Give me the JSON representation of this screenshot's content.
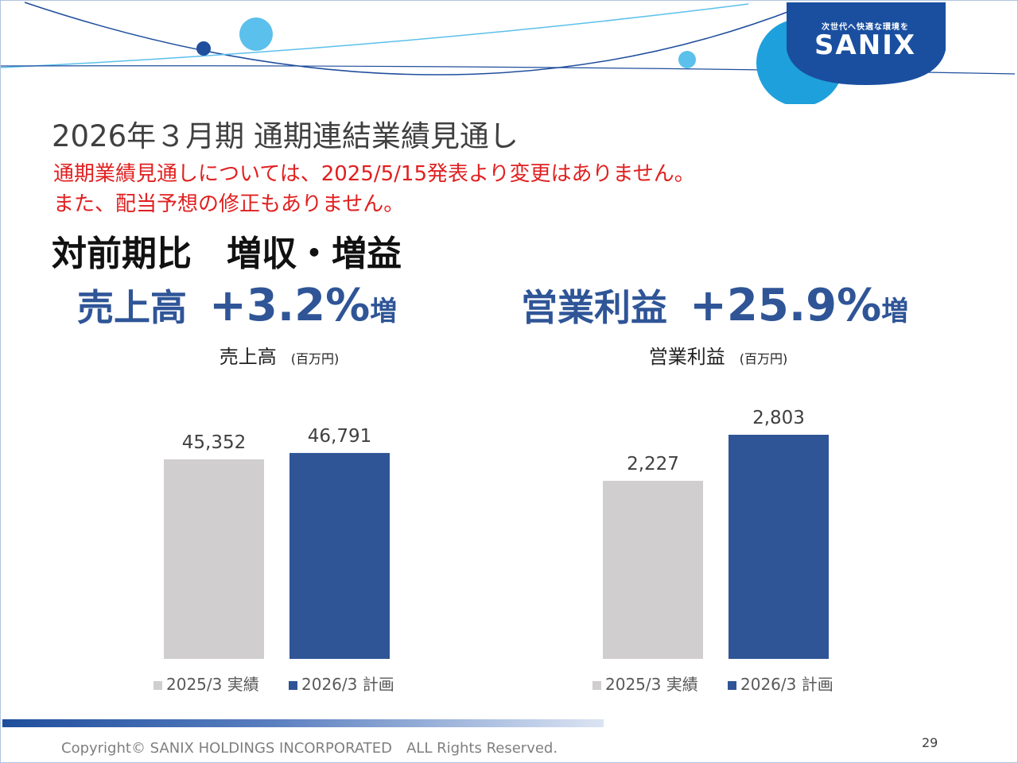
{
  "logo": {
    "tagline": "次世代へ快適な環境を",
    "wordmark": "SANIX"
  },
  "title": "2026年３月期 通期連結業績見通し",
  "notices": [
    "通期業績見通しについては、2025/5/15発表より変更はありません。",
    "また、配当予想の修正もありません。"
  ],
  "subheadline": "対前期比　増収・増益",
  "kpis": [
    {
      "label": "売上高",
      "value": "+3.2%",
      "suffix": "増"
    },
    {
      "label": "営業利益",
      "value": "+25.9%",
      "suffix": "増"
    }
  ],
  "chart_data": [
    {
      "type": "bar",
      "title": "売上高",
      "unit": "(百万円)",
      "categories": [
        "2025/3 実績",
        "2026/3 計画"
      ],
      "values": [
        45352,
        46791
      ],
      "labels": [
        "45,352",
        "46,791"
      ],
      "colors": [
        "#d0cece",
        "#2f5597"
      ],
      "ylim": [
        0,
        50931
      ],
      "legend": "bottom",
      "grid": false
    },
    {
      "type": "bar",
      "title": "営業利益",
      "unit": "(百万円)",
      "categories": [
        "2025/3 実績",
        "2026/3 計画"
      ],
      "values": [
        2227,
        2803
      ],
      "labels": [
        "2,227",
        "2,803"
      ],
      "colors": [
        "#d0cece",
        "#2f5597"
      ],
      "ylim": [
        0,
        2803
      ],
      "legend": "bottom",
      "grid": false
    }
  ],
  "footer": {
    "copyright": "Copyright© SANIX HOLDINGS INCORPORATED　ALL Rights Reserved.",
    "page_number": "29"
  }
}
